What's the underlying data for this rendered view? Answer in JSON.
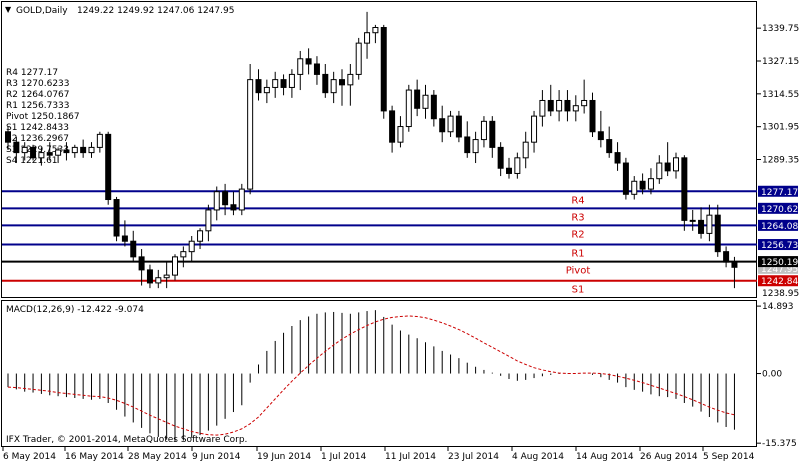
{
  "header": {
    "symbol": "GOLD,Daily",
    "ohlc": "1249.22 1249.92 1247.06 1247.95"
  },
  "pivot_list": [
    "R4 1277.17",
    "R3 1270.6233",
    "R2 1264.0767",
    "R1 1256.7333",
    "Pivot 1250.1867",
    "S1 1242.8433",
    "S2 1236.2967",
    "S3 1229.7533",
    "S4 1221.61"
  ],
  "macd_header": "MACD(12,26,9) -12.422 -9.074",
  "copyright": "IFX Trader, © 2001-2014, MetaQuotes Software Corp.",
  "colors": {
    "candle": "#000000",
    "resistance_line": "#00008b",
    "pivot_line": "#000000",
    "support_line": "#cc0000",
    "line_label": "#cc0000",
    "signal_line": "#cc0000",
    "resistance_tag_bg": "#00008b",
    "pivot_tag_bg": "#000000",
    "support_tag_bg": "#cc0000",
    "close_tag_bg": "#c0c0c0"
  },
  "chart_data": [
    {
      "type": "candlestick",
      "title": "GOLD,Daily",
      "x_tick_labels": [
        "6 May 2014",
        "16 May 2014",
        "28 May 2014",
        "9 Jun 2014",
        "19 Jun 2014",
        "1 Jul 2014",
        "11 Jul 2014",
        "23 Jul 2014",
        "4 Aug 2014",
        "14 Aug 2014",
        "26 Aug 2014",
        "5 Sep 2014"
      ],
      "y_tick_labels": [
        "1339.75",
        "1327.15",
        "1314.55",
        "1301.95",
        "1289.35"
      ],
      "y_ticks": [
        1339.75,
        1327.15,
        1314.55,
        1301.95,
        1289.35
      ],
      "ylim": [
        1236.6,
        1349.4
      ],
      "candles": [
        [
          1300.0,
          1302.0,
          1293.0,
          1296.0
        ],
        [
          1296.0,
          1298.0,
          1288.0,
          1292.0
        ],
        [
          1292.0,
          1296.0,
          1289.0,
          1294.0
        ],
        [
          1294.0,
          1295.0,
          1289.0,
          1290.0
        ],
        [
          1290.0,
          1294.0,
          1287.0,
          1292.0
        ],
        [
          1292.0,
          1296.0,
          1289.0,
          1291.0
        ],
        [
          1291.0,
          1294.0,
          1288.0,
          1293.0
        ],
        [
          1293.0,
          1296.0,
          1289.0,
          1292.0
        ],
        [
          1292.0,
          1295.0,
          1290.0,
          1294.0
        ],
        [
          1294.0,
          1297.0,
          1290.0,
          1292.0
        ],
        [
          1292.0,
          1296.0,
          1290.0,
          1294.0
        ],
        [
          1294.0,
          1300.0,
          1292.0,
          1299.0
        ],
        [
          1299.0,
          1300.0,
          1272.0,
          1274.0
        ],
        [
          1274.0,
          1275.0,
          1258.0,
          1260.0
        ],
        [
          1260.0,
          1266.0,
          1256.0,
          1258.0
        ],
        [
          1258.0,
          1262.0,
          1250.0,
          1252.0
        ],
        [
          1252.0,
          1255.0,
          1241.0,
          1247.0
        ],
        [
          1247.0,
          1249.0,
          1240.0,
          1242.0
        ],
        [
          1242.0,
          1247.0,
          1240.0,
          1244.0
        ],
        [
          1244.0,
          1250.0,
          1240.0,
          1245.0
        ],
        [
          1245.0,
          1253.0,
          1243.0,
          1252.0
        ],
        [
          1252.0,
          1256.0,
          1248.0,
          1254.0
        ],
        [
          1254.0,
          1260.0,
          1250.0,
          1258.0
        ],
        [
          1258.0,
          1263.0,
          1255.0,
          1262.0
        ],
        [
          1262.0,
          1272.0,
          1258.0,
          1270.0
        ],
        [
          1270.0,
          1279.0,
          1266.0,
          1277.0
        ],
        [
          1277.0,
          1280.0,
          1268.0,
          1272.0
        ],
        [
          1272.0,
          1277.0,
          1268.0,
          1270.0
        ],
        [
          1270.0,
          1280.0,
          1268.0,
          1278.0
        ],
        [
          1278.0,
          1326.0,
          1276.0,
          1320.0
        ],
        [
          1320.0,
          1324.0,
          1312.0,
          1315.0
        ],
        [
          1315.0,
          1320.0,
          1311.0,
          1317.0
        ],
        [
          1317.0,
          1323.0,
          1313.0,
          1320.0
        ],
        [
          1320.0,
          1322.0,
          1314.0,
          1317.0
        ],
        [
          1317.0,
          1324.0,
          1313.0,
          1322.0
        ],
        [
          1322.0,
          1331.0,
          1316.0,
          1328.0
        ],
        [
          1328.0,
          1332.0,
          1322.0,
          1326.0
        ],
        [
          1326.0,
          1329.0,
          1318.0,
          1322.0
        ],
        [
          1322.0,
          1326.0,
          1313.0,
          1315.0
        ],
        [
          1315.0,
          1323.0,
          1311.0,
          1320.0
        ],
        [
          1320.0,
          1324.0,
          1310.0,
          1318.0
        ],
        [
          1318.0,
          1326.0,
          1310.0,
          1322.0
        ],
        [
          1322.0,
          1336.0,
          1320.0,
          1334.0
        ],
        [
          1334.0,
          1346.0,
          1328.0,
          1338.0
        ],
        [
          1338.0,
          1341.0,
          1334.0,
          1340.0
        ],
        [
          1340.0,
          1341.0,
          1305.0,
          1308.0
        ],
        [
          1308.0,
          1310.0,
          1292.0,
          1296.0
        ],
        [
          1296.0,
          1306.0,
          1294.0,
          1302.0
        ],
        [
          1302.0,
          1318.0,
          1300.0,
          1316.0
        ],
        [
          1316.0,
          1320.0,
          1306.0,
          1309.0
        ],
        [
          1309.0,
          1318.0,
          1305.0,
          1314.0
        ],
        [
          1314.0,
          1316.0,
          1302.0,
          1305.0
        ],
        [
          1305.0,
          1310.0,
          1296.0,
          1300.0
        ],
        [
          1300.0,
          1308.0,
          1298.0,
          1306.0
        ],
        [
          1306.0,
          1308.0,
          1296.0,
          1298.0
        ],
        [
          1298.0,
          1304.0,
          1290.0,
          1292.0
        ],
        [
          1292.0,
          1300.0,
          1288.0,
          1297.0
        ],
        [
          1297.0,
          1306.0,
          1294.0,
          1304.0
        ],
        [
          1304.0,
          1306.0,
          1290.0,
          1294.0
        ],
        [
          1294.0,
          1296.0,
          1283.0,
          1286.0
        ],
        [
          1286.0,
          1290.0,
          1282.0,
          1284.0
        ],
        [
          1284.0,
          1292.0,
          1282.0,
          1290.0
        ],
        [
          1290.0,
          1300.0,
          1286.0,
          1296.0
        ],
        [
          1296.0,
          1308.0,
          1292.0,
          1306.0
        ],
        [
          1306.0,
          1316.0,
          1302.0,
          1312.0
        ],
        [
          1312.0,
          1318.0,
          1306.0,
          1308.0
        ],
        [
          1308.0,
          1316.0,
          1304.0,
          1312.0
        ],
        [
          1312.0,
          1316.0,
          1304.0,
          1308.0
        ],
        [
          1308.0,
          1314.0,
          1304.0,
          1310.0
        ],
        [
          1310.0,
          1320.0,
          1307.0,
          1312.0
        ],
        [
          1312.0,
          1315.0,
          1298.0,
          1300.0
        ],
        [
          1300.0,
          1308.0,
          1294.0,
          1297.0
        ],
        [
          1297.0,
          1302.0,
          1290.0,
          1292.0
        ],
        [
          1292.0,
          1296.0,
          1285.0,
          1288.0
        ],
        [
          1288.0,
          1290.0,
          1274.0,
          1276.0
        ],
        [
          1276.0,
          1283.0,
          1274.0,
          1281.0
        ],
        [
          1281.0,
          1284.0,
          1276.0,
          1278.0
        ],
        [
          1278.0,
          1286.0,
          1276.0,
          1282.0
        ],
        [
          1282.0,
          1291.0,
          1280.0,
          1288.0
        ],
        [
          1288.0,
          1296.0,
          1283.0,
          1285.0
        ],
        [
          1285.0,
          1292.0,
          1282.0,
          1290.0
        ],
        [
          1290.0,
          1291.0,
          1262.0,
          1266.0
        ],
        [
          1266.0,
          1270.0,
          1262.0,
          1266.0
        ],
        [
          1266.0,
          1271.0,
          1259.0,
          1261.0
        ],
        [
          1261.0,
          1272.0,
          1258.0,
          1268.0
        ],
        [
          1268.0,
          1272.0,
          1252.0,
          1254.0
        ],
        [
          1254.0,
          1256.0,
          1248.0,
          1250.0
        ],
        [
          1250.0,
          1252.0,
          1240.0,
          1248.0
        ]
      ],
      "horizontal_levels": [
        {
          "label": "R4",
          "value": 1277.17,
          "tag": "1277.17",
          "kind": "resistance"
        },
        {
          "label": "R3",
          "value": 1270.62,
          "tag": "1270.62",
          "kind": "resistance"
        },
        {
          "label": "R2",
          "value": 1264.08,
          "tag": "1264.08",
          "kind": "resistance"
        },
        {
          "label": "R1",
          "value": 1256.73,
          "tag": "1256.73",
          "kind": "resistance"
        },
        {
          "label": "Pivot",
          "value": 1250.19,
          "tag": "1250.19",
          "kind": "pivot"
        },
        {
          "label": "S1",
          "value": 1242.84,
          "tag": "1242.84",
          "kind": "support"
        }
      ],
      "last_close_tag": "1247.95",
      "bottom_tick": "1238.95",
      "grid": false
    },
    {
      "type": "bar+line",
      "title": "MACD(12,26,9)",
      "y_tick_labels": [
        "14.893",
        "0.00",
        "-15.375"
      ],
      "y_ticks": [
        14.893,
        0.0,
        -15.375
      ],
      "ylim": [
        -16.0,
        15.8
      ],
      "histogram": [
        -3.0,
        -3.5,
        -4.0,
        -4.2,
        -4.5,
        -4.8,
        -5.0,
        -5.2,
        -5.4,
        -5.6,
        -5.8,
        -5.6,
        -6.5,
        -8.0,
        -9.5,
        -10.8,
        -12.0,
        -13.2,
        -14.0,
        -14.6,
        -15.0,
        -14.8,
        -14.2,
        -13.6,
        -12.6,
        -11.5,
        -10.0,
        -8.5,
        -7.0,
        -2.0,
        2.0,
        5.0,
        7.2,
        9.0,
        10.5,
        11.8,
        12.6,
        13.2,
        13.5,
        13.6,
        13.4,
        13.2,
        13.5,
        13.8,
        14.0,
        12.5,
        10.8,
        9.5,
        8.6,
        7.8,
        6.9,
        6.0,
        5.0,
        4.2,
        3.4,
        2.4,
        1.5,
        0.8,
        0.2,
        -0.5,
        -1.2,
        -1.6,
        -1.4,
        -1.0,
        -0.6,
        -0.3,
        -0.1,
        -0.05,
        0.0,
        0.1,
        -0.3,
        -0.8,
        -1.4,
        -2.0,
        -3.0,
        -3.6,
        -4.0,
        -4.6,
        -5.0,
        -5.2,
        -5.6,
        -6.5,
        -7.3,
        -8.4,
        -9.6,
        -10.8,
        -11.8,
        -12.4
      ],
      "signal": [
        -3.0,
        -3.1,
        -3.3,
        -3.5,
        -3.7,
        -3.9,
        -4.2,
        -4.4,
        -4.6,
        -4.8,
        -5.0,
        -5.1,
        -5.4,
        -5.9,
        -6.6,
        -7.4,
        -8.3,
        -9.2,
        -10.0,
        -10.8,
        -11.6,
        -12.2,
        -12.8,
        -13.2,
        -13.5,
        -13.6,
        -13.4,
        -12.9,
        -12.2,
        -11.1,
        -9.6,
        -7.6,
        -5.6,
        -3.6,
        -1.7,
        0.1,
        1.8,
        3.4,
        4.9,
        6.3,
        7.6,
        8.7,
        9.7,
        10.6,
        11.4,
        12.0,
        12.4,
        12.6,
        12.7,
        12.6,
        12.3,
        11.8,
        11.2,
        10.5,
        9.7,
        8.8,
        7.8,
        6.8,
        5.8,
        4.8,
        3.8,
        2.8,
        2.0,
        1.3,
        0.8,
        0.4,
        0.1,
        0.0,
        0.0,
        0.1,
        0.1,
        0.0,
        -0.2,
        -0.6,
        -1.0,
        -1.5,
        -2.0,
        -2.6,
        -3.2,
        -3.8,
        -4.4,
        -5.1,
        -5.8,
        -6.6,
        -7.4,
        -8.1,
        -8.7,
        -9.1
      ],
      "grid": false
    }
  ]
}
